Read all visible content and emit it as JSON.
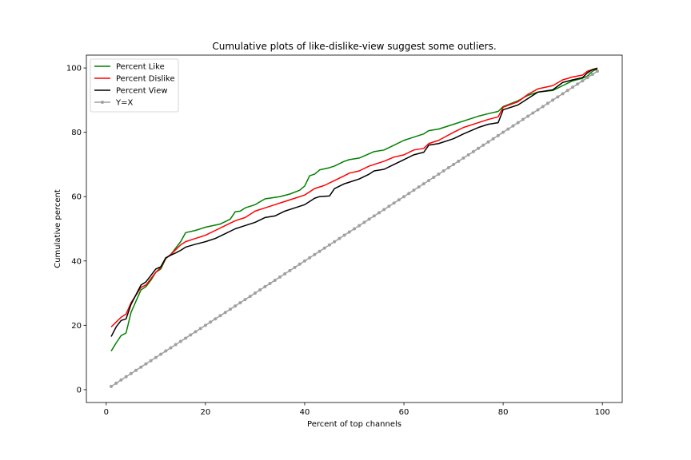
{
  "chart_data": {
    "type": "line",
    "title": "Cumulative plots of like-dislike-view suggest some outliers.",
    "xlabel": "Percent of top channels",
    "ylabel": "Cumulative percent",
    "xlim": [
      -4,
      104
    ],
    "ylim": [
      -4,
      104
    ],
    "xticks": [
      0,
      20,
      40,
      60,
      80,
      100
    ],
    "yticks": [
      0,
      20,
      40,
      60,
      80,
      100
    ],
    "grid": false,
    "legend_position": "top-left",
    "series": [
      {
        "name": "Percent Like",
        "color": "#008000",
        "marker": "none",
        "x": [
          1,
          2,
          3,
          4,
          5,
          7,
          8,
          9,
          10,
          11,
          12,
          13,
          14,
          15,
          16,
          18,
          20,
          23,
          25,
          26,
          27,
          28,
          30,
          32,
          35,
          37,
          39,
          40,
          41,
          42,
          43,
          45,
          46,
          48,
          49,
          51,
          54,
          56,
          58,
          60,
          62,
          64,
          65,
          67,
          70,
          73,
          75,
          77,
          79,
          80,
          83,
          85,
          87,
          90,
          92,
          94,
          96,
          97,
          98,
          99
        ],
        "y": [
          12,
          14.5,
          16.8,
          17.6,
          24,
          31,
          32,
          34,
          36.5,
          37.5,
          40.7,
          42,
          44,
          46,
          48.8,
          49.5,
          50.5,
          51.5,
          53,
          55.3,
          55.5,
          56.5,
          57.5,
          59.3,
          60,
          60.8,
          62,
          63.3,
          66.5,
          67,
          68.3,
          69,
          69.5,
          71,
          71.5,
          72,
          74,
          74.5,
          76,
          77.5,
          78.5,
          79.5,
          80.5,
          81,
          82.5,
          84,
          85,
          85.8,
          86.5,
          88,
          89.8,
          91.5,
          92.5,
          93,
          94.5,
          96,
          96.8,
          97.5,
          99,
          99.7
        ]
      },
      {
        "name": "Percent Dislike",
        "color": "#ff0000",
        "marker": "none",
        "x": [
          1,
          2,
          3,
          4,
          5,
          7,
          8,
          9,
          10,
          11,
          12,
          13,
          14,
          15,
          16,
          18,
          20,
          22,
          24,
          26,
          28,
          30,
          32,
          34,
          36,
          38,
          40,
          42,
          44,
          46,
          48,
          49,
          51,
          53,
          54,
          56,
          58,
          60,
          62,
          64,
          65,
          67,
          70,
          72,
          75,
          77,
          79,
          80,
          83,
          85,
          87,
          90,
          92,
          94,
          96,
          97,
          98,
          99
        ],
        "y": [
          19.5,
          21,
          22.5,
          23.5,
          27,
          31.8,
          32.5,
          34.5,
          36.5,
          38,
          40.8,
          42,
          43.5,
          45,
          46,
          47,
          48,
          49.5,
          51,
          52.5,
          53.5,
          55.5,
          56.5,
          57.5,
          58.5,
          59.5,
          60.5,
          62.5,
          63.5,
          65,
          66.5,
          67.3,
          68,
          69.5,
          70,
          71,
          72.3,
          73,
          74.5,
          75,
          76.5,
          77.5,
          80,
          81.5,
          83,
          84,
          84.8,
          87.8,
          89.5,
          91.8,
          93.5,
          94.5,
          96.3,
          97.2,
          97.8,
          99,
          99.5,
          100
        ]
      },
      {
        "name": "Percent View",
        "color": "#000000",
        "marker": "none",
        "x": [
          1,
          2,
          3,
          4,
          5,
          7,
          8,
          9,
          10,
          11,
          12,
          13,
          14,
          15,
          16,
          18,
          20,
          22,
          24,
          26,
          28,
          30,
          32,
          34,
          36,
          38,
          40,
          42,
          43,
          45,
          46,
          48,
          49,
          51,
          53,
          54,
          56,
          58,
          60,
          62,
          64,
          65,
          67,
          70,
          72,
          75,
          77,
          79,
          80,
          83,
          85,
          87,
          90,
          92,
          94,
          96,
          97,
          98,
          99
        ],
        "y": [
          16.5,
          19.5,
          21.5,
          22,
          26.5,
          32.5,
          33.5,
          35.5,
          37.5,
          38.2,
          41,
          41.8,
          42.5,
          43.3,
          44.3,
          45.2,
          46,
          47,
          48.5,
          50,
          51,
          52,
          53.5,
          54,
          55.5,
          56.5,
          57.5,
          59.5,
          60,
          60.2,
          62.5,
          64,
          64.5,
          65.5,
          67,
          68,
          68.5,
          70,
          71.5,
          73,
          73.8,
          76,
          76.5,
          78,
          79.5,
          81.5,
          82.5,
          83,
          87,
          88.5,
          90.5,
          92.5,
          93.2,
          95.5,
          96.3,
          97,
          98.5,
          99.5,
          99.8
        ]
      },
      {
        "name": "Y=X",
        "color": "#a0a0a0",
        "marker": "circle",
        "x_start": 1,
        "x_end": 99,
        "step": 1
      }
    ]
  }
}
